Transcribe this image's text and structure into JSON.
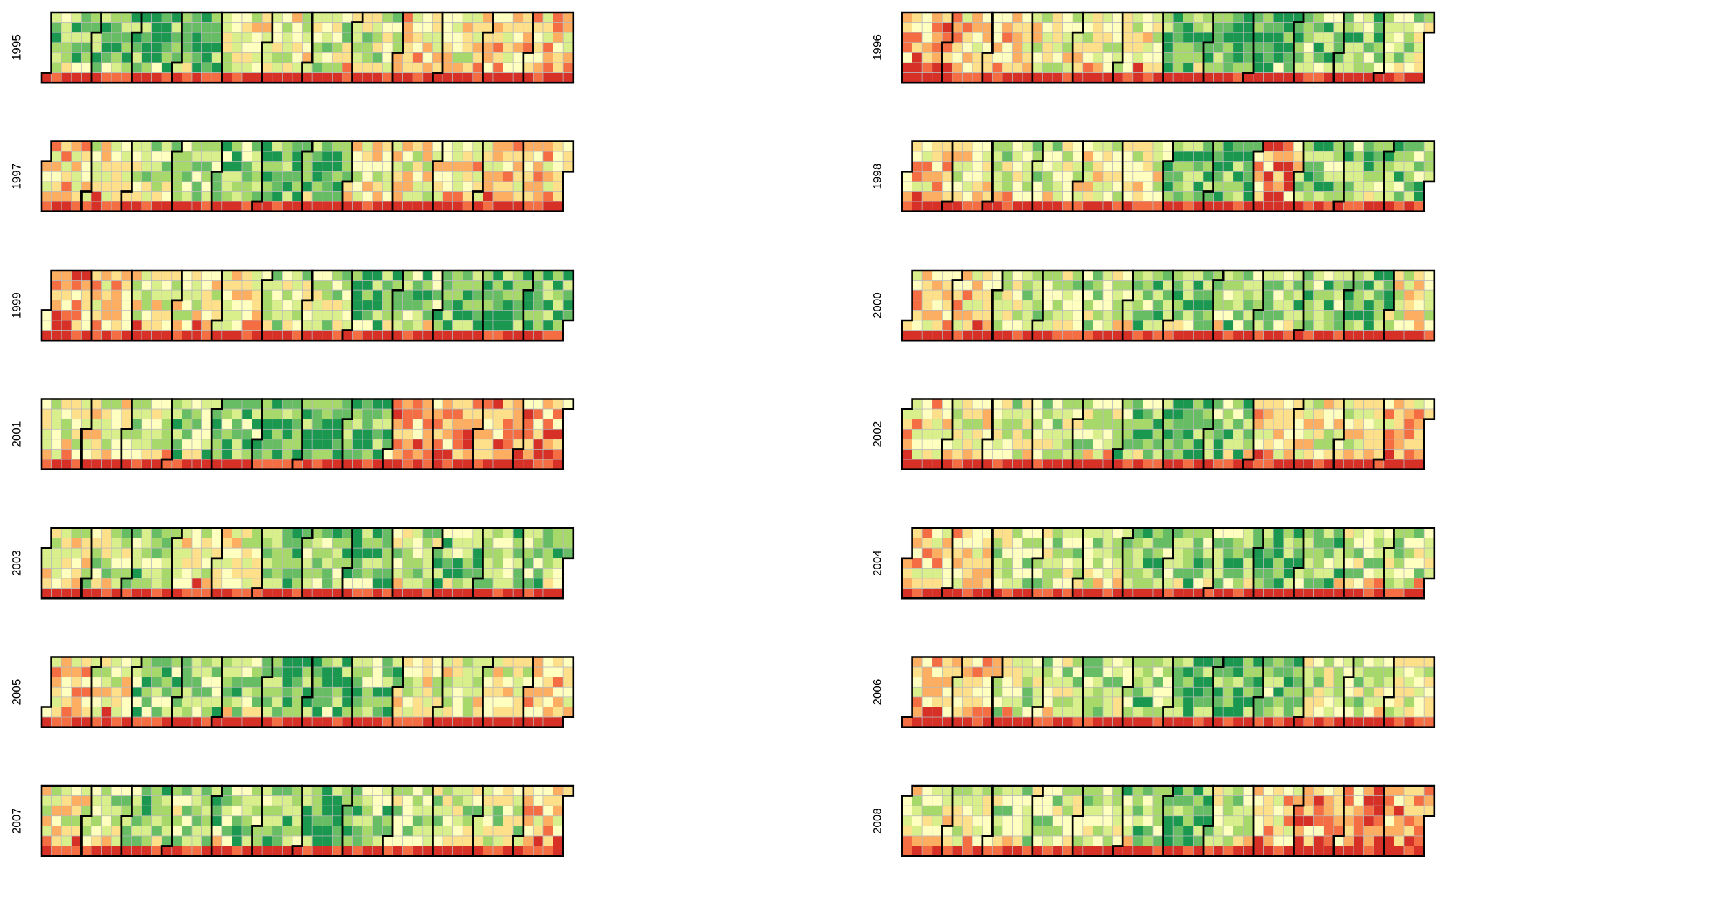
{
  "chart_data": {
    "type": "heatmap",
    "layout": "calendar",
    "years": [
      "1995",
      "1996",
      "1997",
      "1998",
      "1999",
      "2000",
      "2001",
      "2002",
      "2003",
      "2004",
      "2005",
      "2006",
      "2007",
      "2008"
    ],
    "panel_order": "two columns, left column 1995,1997,...,2007; right column 1996,1998,...,2008",
    "week_start": "Monday (bottom row = Sunday)",
    "color_scale": [
      "#d73027",
      "#f46d43",
      "#fdae61",
      "#fee08b",
      "#ffffbf",
      "#d9ef8b",
      "#a6d96a",
      "#66bd63",
      "#1a9850"
    ],
    "color_scale_note": "9-level diverging red-yellow-green scale, one colour per day",
    "daily_levels_note": "daily colour levels 0-8 per year, estimated from the image; Sundays predominantly red/orange",
    "month_summary": {
      "1995": [
        6,
        7,
        7,
        7,
        4,
        4,
        5,
        5,
        3,
        4,
        3,
        3
      ],
      "1996": [
        2,
        3,
        3,
        4,
        4,
        4,
        7,
        7,
        8,
        6,
        6,
        5
      ],
      "1997": [
        3,
        4,
        5,
        5,
        6,
        7,
        7,
        4,
        4,
        3,
        3,
        3
      ],
      "1998": [
        3,
        4,
        5,
        5,
        4,
        4,
        7,
        7,
        2,
        6,
        6,
        6
      ],
      "1999": [
        2,
        3,
        4,
        4,
        3,
        5,
        5,
        7,
        6,
        7,
        7,
        7
      ],
      "2000": [
        3,
        3,
        5,
        5,
        5,
        6,
        7,
        6,
        6,
        6,
        7,
        4
      ],
      "2001": [
        4,
        4,
        5,
        6,
        6,
        7,
        7,
        7,
        2,
        2,
        2,
        2
      ],
      "2002": [
        3,
        4,
        5,
        5,
        5,
        6,
        7,
        6,
        3,
        4,
        4,
        3
      ],
      "2003": [
        4,
        5,
        6,
        4,
        4,
        6,
        6,
        7,
        5,
        6,
        6,
        6
      ],
      "2004": [
        3,
        3,
        5,
        5,
        5,
        6,
        6,
        6,
        7,
        6,
        5,
        5
      ],
      "2005": [
        3,
        4,
        6,
        6,
        6,
        7,
        7,
        6,
        4,
        4,
        4,
        3
      ],
      "2006": [
        3,
        3,
        5,
        5,
        5,
        6,
        7,
        7,
        6,
        5,
        5,
        4
      ],
      "2007": [
        4,
        5,
        6,
        5,
        6,
        6,
        7,
        6,
        5,
        5,
        5,
        3
      ],
      "2008": [
        4,
        4,
        5,
        5,
        5,
        6,
        7,
        5,
        3,
        2,
        2,
        2
      ]
    }
  }
}
